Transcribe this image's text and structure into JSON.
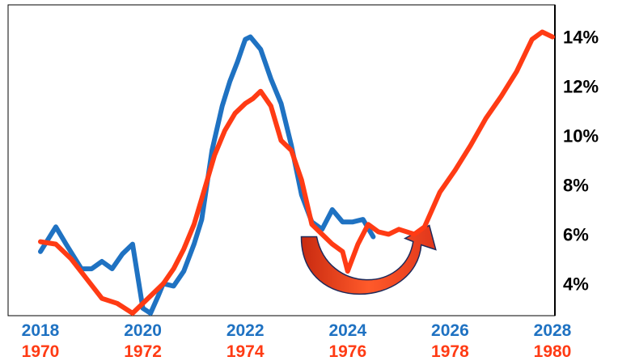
{
  "chart_data": {
    "type": "line",
    "title": "",
    "xlabel": "",
    "ylabel": "",
    "y_unit": "%",
    "ylim": [
      2.7,
      15.3
    ],
    "y_ticks": [
      "4%",
      "6%",
      "8%",
      "10%",
      "12%",
      "14%"
    ],
    "y_tick_values": [
      4,
      6,
      8,
      10,
      12,
      14
    ],
    "axis_position": "right",
    "grid": false,
    "legend": "none",
    "x_ticks_top": [
      "2018",
      "2020",
      "2022",
      "2024",
      "2026",
      "2028"
    ],
    "x_ticks_bottom": [
      "1970",
      "1972",
      "1974",
      "1976",
      "1978",
      "1980"
    ],
    "annotations": [
      {
        "type": "curved-arrow",
        "description_icon": "u-turn-arrow-icon",
        "from_x": 1975.3,
        "to_x": 1977.5,
        "y_start": 5.9,
        "y_bottom": 4.0,
        "y_end": 5.9,
        "color": "#e0361b"
      }
    ],
    "series": [
      {
        "name": "",
        "axis": "top",
        "color": "#1f72c2",
        "x": [
          2018.0,
          2018.3,
          2018.5,
          2018.8,
          2019.0,
          2019.2,
          2019.4,
          2019.6,
          2019.8,
          2020.0,
          2020.15,
          2020.3,
          2020.4,
          2020.6,
          2020.8,
          2021.0,
          2021.15,
          2021.35,
          2021.55,
          2021.7,
          2021.85,
          2021.95,
          2022.0,
          2022.1,
          2022.3,
          2022.5,
          2022.7,
          2022.9,
          2023.1,
          2023.3,
          2023.5,
          2023.7,
          2023.9,
          2024.1,
          2024.3,
          2024.5
        ],
        "y": [
          5.3,
          6.3,
          5.6,
          4.6,
          4.6,
          4.9,
          4.6,
          5.2,
          5.6,
          3.0,
          2.8,
          3.5,
          4.0,
          3.9,
          4.5,
          5.6,
          6.6,
          9.4,
          11.2,
          12.2,
          13.0,
          13.6,
          13.9,
          14.0,
          13.5,
          12.3,
          11.3,
          9.6,
          7.6,
          6.5,
          6.2,
          7.0,
          6.5,
          6.5,
          6.6,
          5.9
        ]
      },
      {
        "name": "",
        "axis": "bottom",
        "color": "#ff3b14",
        "x": [
          1970.0,
          1970.3,
          1970.6,
          1970.9,
          1971.2,
          1971.5,
          1971.8,
          1972.0,
          1972.2,
          1972.4,
          1972.6,
          1972.8,
          1973.0,
          1973.2,
          1973.4,
          1973.6,
          1973.8,
          1974.0,
          1974.15,
          1974.3,
          1974.5,
          1974.7,
          1974.9,
          1975.1,
          1975.3,
          1975.5,
          1975.7,
          1975.9,
          1976.0,
          1976.2,
          1976.4,
          1976.6,
          1976.8,
          1977.0,
          1977.3,
          1977.5,
          1977.8,
          1978.1,
          1978.4,
          1978.7,
          1979.0,
          1979.3,
          1979.6,
          1979.8,
          1980.0
        ],
        "y": [
          5.7,
          5.6,
          5.0,
          4.2,
          3.4,
          3.2,
          2.8,
          3.2,
          3.6,
          4.0,
          4.6,
          5.4,
          6.4,
          7.8,
          9.2,
          10.2,
          10.9,
          11.3,
          11.5,
          11.8,
          11.2,
          9.8,
          9.4,
          8.2,
          6.4,
          6.0,
          5.6,
          5.3,
          4.5,
          5.6,
          6.4,
          6.1,
          6.0,
          6.2,
          6.0,
          6.3,
          7.7,
          8.6,
          9.6,
          10.7,
          11.6,
          12.6,
          13.9,
          14.2,
          14.0
        ]
      }
    ]
  }
}
